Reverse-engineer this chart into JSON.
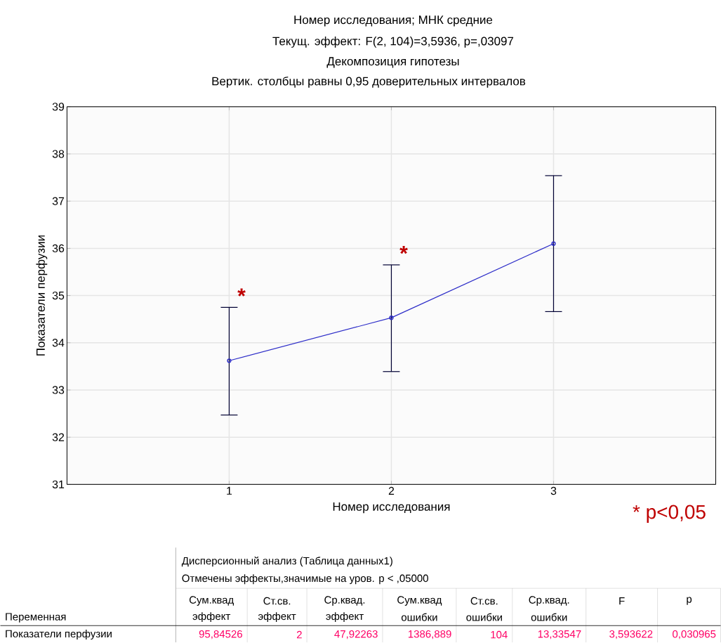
{
  "chart_data": {
    "type": "line",
    "title": "Номер исследования; МНК средние",
    "subtitle": "Текущ.  эффект: F(2, 104)=3,5936, p=,03097",
    "xlabel": "Номер исследования",
    "ylabel": "Показатели перфузии",
    "categories": [
      "1",
      "2",
      "3"
    ],
    "series": [
      {
        "color": "#2c2cc8",
        "values": [
          33.62,
          34.53,
          36.1
        ],
        "errors": [
          [
            32.47,
            34.75
          ],
          [
            33.39,
            35.65
          ],
          [
            34.66,
            37.54
          ]
        ]
      }
    ],
    "ylim": [
      31,
      39
    ],
    "yticks": [
      31,
      32,
      33,
      34,
      35,
      36,
      37,
      38,
      39
    ],
    "grid": true,
    "marker": "circle",
    "line_style": "solid",
    "annotations": [
      "Декомпозиция гипотезы",
      "Вертик. столбцы равны 0,95 доверительных интервалов",
      "* p<0,05",
      {
        "text": "*",
        "x": "1",
        "y": 34.75
      },
      {
        "text": "*",
        "x": "2",
        "y": 35.65
      },
      "Дисперсионный анализ (Таблица данных1)",
      "Отмечены эффекты,значимые на уров. p < ,05000",
      "Переменная",
      "Сум.квад",
      "Ст.св.",
      "Ср.квад.",
      "Сум.квад",
      "Ст.св.",
      "Ср.квад.",
      "F",
      "p",
      "эффект",
      "эффект",
      "эффект",
      "ошибки",
      "ошибки",
      "ошибки",
      "Показатели перфузии",
      "95,84526",
      "2",
      "47,92263",
      "1386,889",
      "104",
      "13,33547",
      "3,593622",
      "0,030965"
    ]
  }
}
